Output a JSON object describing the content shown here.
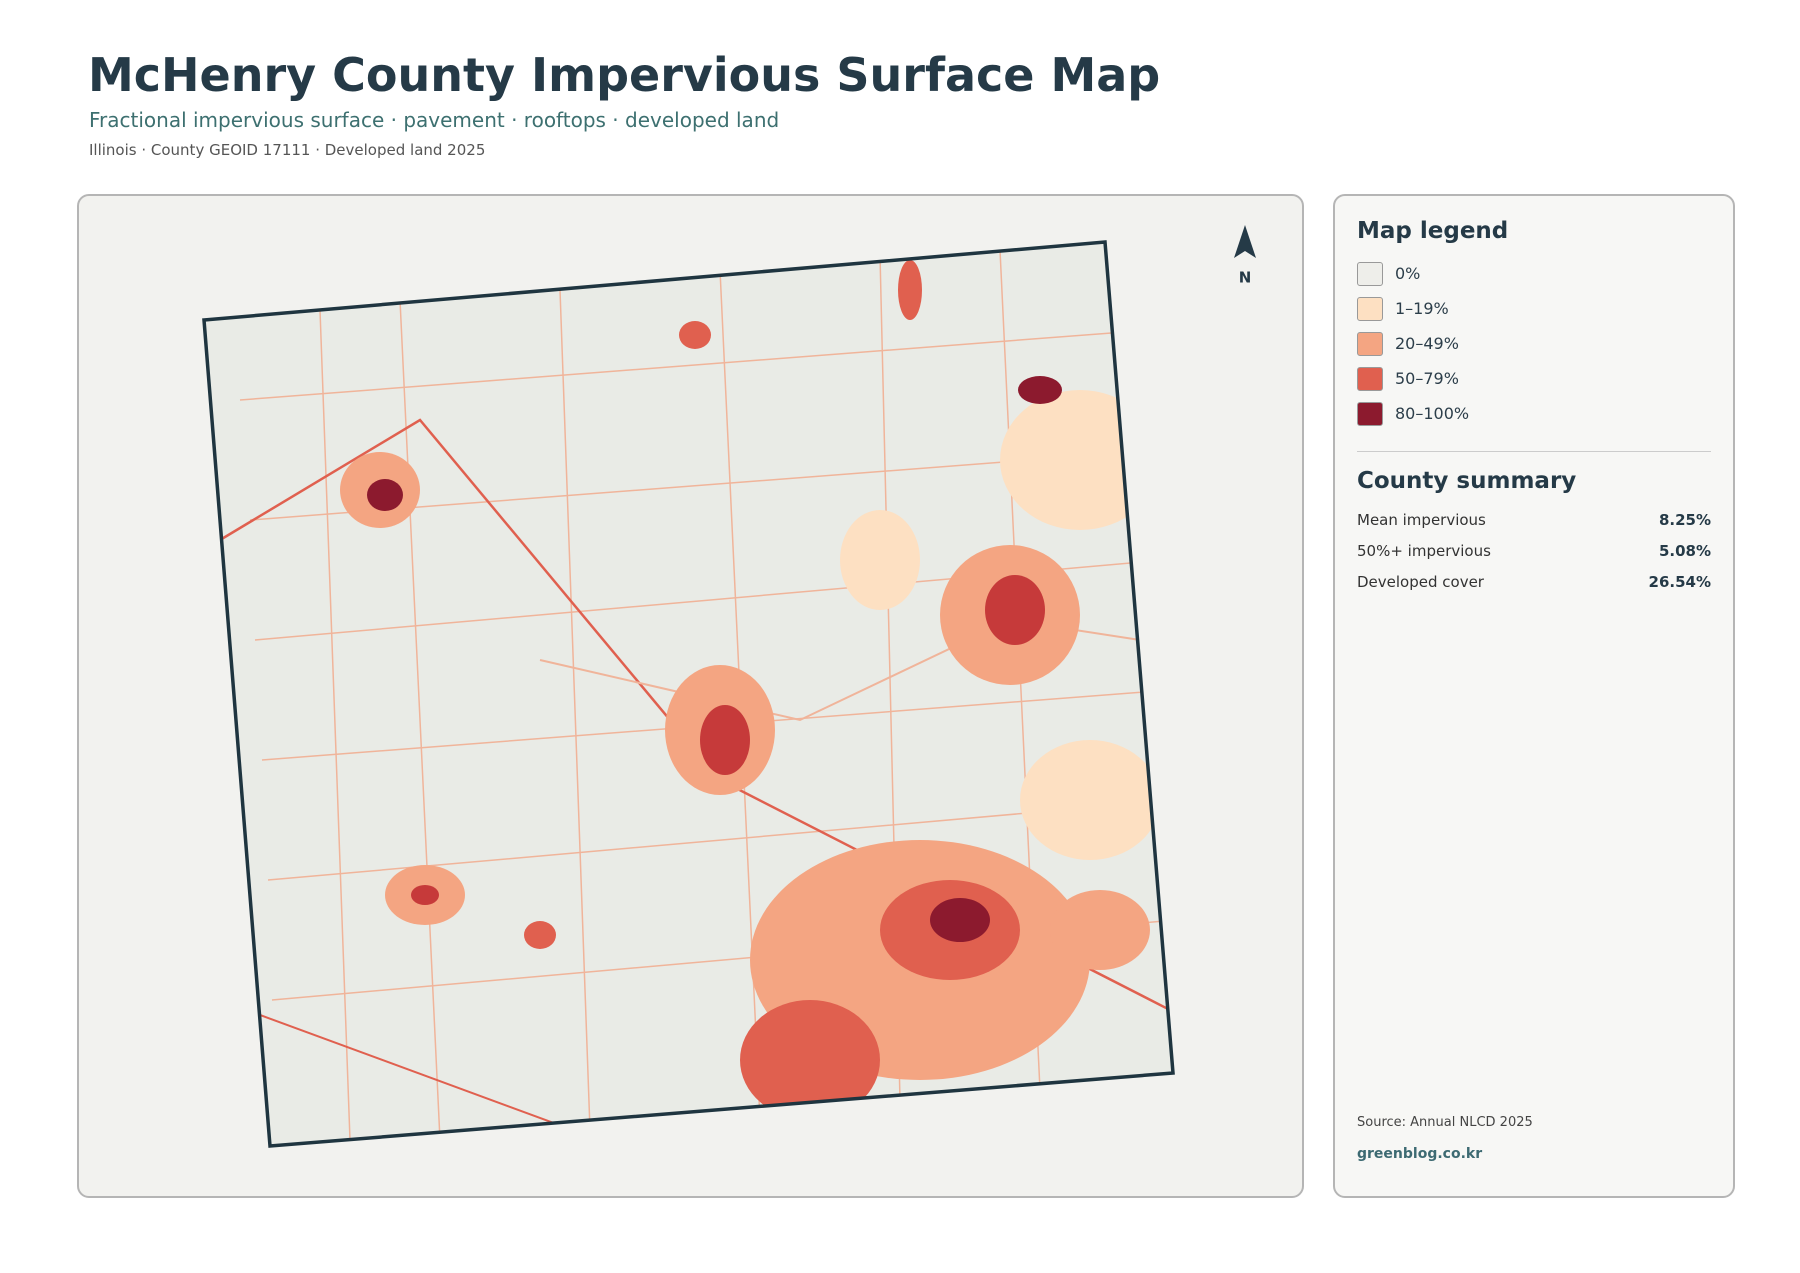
{
  "header": {
    "title": "McHenry County Impervious Surface Map",
    "subtitle": "Fractional impervious surface · pavement · rooftops · developed land",
    "meta": "Illinois · County GEOID 17111 · Developed land 2025"
  },
  "map": {
    "north_label": "N"
  },
  "legend": {
    "title": "Map legend",
    "items": [
      {
        "label": "0%",
        "color": "#eeeeea"
      },
      {
        "label": "1–19%",
        "color": "#fde0c2"
      },
      {
        "label": "20–49%",
        "color": "#f4a582"
      },
      {
        "label": "50–79%",
        "color": "#e0604f"
      },
      {
        "label": "80–100%",
        "color": "#8c1a2e"
      }
    ]
  },
  "summary": {
    "title": "County summary",
    "rows": [
      {
        "label": "Mean impervious",
        "value": "8.25%"
      },
      {
        "label": "50%+ impervious",
        "value": "5.08%"
      },
      {
        "label": "Developed cover",
        "value": "26.54%"
      }
    ]
  },
  "footer": {
    "source": "Source: Annual NLCD 2025",
    "site": "greenblog.co.kr"
  }
}
